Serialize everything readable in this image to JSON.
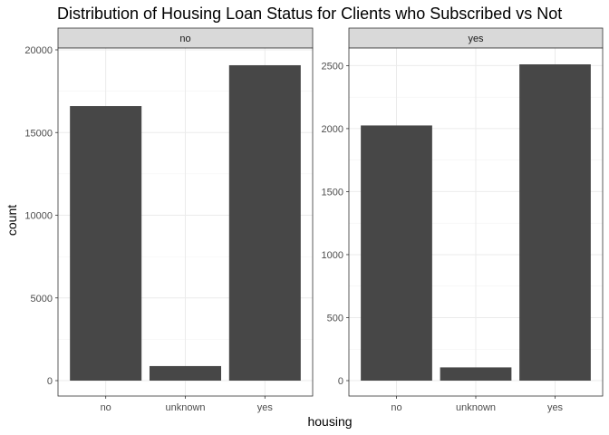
{
  "chart_data": {
    "type": "bar",
    "title": "Distribution of Housing Loan Status for Clients who Subscribed vs Not",
    "xlabel": "housing",
    "ylabel": "count",
    "categories": [
      "no",
      "unknown",
      "yes"
    ],
    "grid": true,
    "bar_color": "#474747",
    "panels": [
      {
        "strip": "no",
        "values": [
          16600,
          880,
          19070
        ],
        "ylim": [
          0,
          20000
        ],
        "yticks": [
          0,
          5000,
          10000,
          15000,
          20000
        ],
        "ytick_labels": [
          "0",
          "5000",
          "10000",
          "15000",
          "20000"
        ]
      },
      {
        "strip": "yes",
        "values": [
          2025,
          105,
          2510
        ],
        "ylim": [
          0,
          2510
        ],
        "yticks": [
          0,
          500,
          1000,
          1500,
          2000,
          2500
        ],
        "ytick_labels": [
          "0",
          "500",
          "1000",
          "1500",
          "2000",
          "2500"
        ]
      }
    ]
  }
}
